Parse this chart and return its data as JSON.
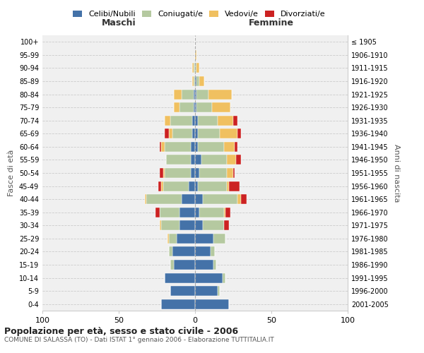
{
  "age_groups": [
    "0-4",
    "5-9",
    "10-14",
    "15-19",
    "20-24",
    "25-29",
    "30-34",
    "35-39",
    "40-44",
    "45-49",
    "50-54",
    "55-59",
    "60-64",
    "65-69",
    "70-74",
    "75-79",
    "80-84",
    "85-89",
    "90-94",
    "95-99",
    "100+"
  ],
  "birth_years": [
    "2001-2005",
    "1996-2000",
    "1991-1995",
    "1986-1990",
    "1981-1985",
    "1976-1980",
    "1971-1975",
    "1966-1970",
    "1961-1965",
    "1956-1960",
    "1951-1955",
    "1946-1950",
    "1941-1945",
    "1936-1940",
    "1931-1935",
    "1926-1930",
    "1921-1925",
    "1916-1920",
    "1911-1915",
    "1906-1910",
    "≤ 1905"
  ],
  "maschi": {
    "celibi": [
      22,
      16,
      20,
      14,
      15,
      12,
      10,
      10,
      9,
      4,
      3,
      3,
      3,
      2,
      2,
      1,
      1,
      0,
      0,
      0,
      0
    ],
    "coniugati": [
      0,
      0,
      0,
      2,
      2,
      5,
      12,
      13,
      23,
      17,
      17,
      16,
      17,
      13,
      14,
      9,
      8,
      1,
      1,
      0,
      0
    ],
    "vedovi": [
      0,
      0,
      0,
      0,
      0,
      1,
      1,
      0,
      1,
      1,
      1,
      0,
      2,
      2,
      4,
      4,
      5,
      1,
      1,
      0,
      0
    ],
    "divorziati": [
      0,
      0,
      0,
      0,
      0,
      0,
      0,
      3,
      0,
      2,
      2,
      0,
      1,
      3,
      0,
      0,
      0,
      0,
      0,
      0,
      0
    ]
  },
  "femmine": {
    "nubili": [
      22,
      15,
      18,
      12,
      10,
      12,
      5,
      3,
      5,
      2,
      3,
      4,
      2,
      2,
      2,
      1,
      1,
      1,
      0,
      0,
      0
    ],
    "coniugate": [
      0,
      1,
      2,
      2,
      3,
      8,
      14,
      16,
      23,
      19,
      18,
      17,
      17,
      14,
      13,
      10,
      8,
      2,
      1,
      0,
      0
    ],
    "vedove": [
      0,
      0,
      0,
      0,
      0,
      0,
      0,
      1,
      2,
      1,
      4,
      6,
      7,
      12,
      10,
      12,
      15,
      3,
      2,
      1,
      0
    ],
    "divorziate": [
      0,
      0,
      0,
      0,
      0,
      0,
      3,
      3,
      4,
      7,
      1,
      3,
      2,
      2,
      3,
      0,
      0,
      0,
      0,
      0,
      0
    ]
  },
  "colors": {
    "celibi_nubili": "#4472a8",
    "coniugati": "#b5c9a0",
    "vedovi": "#f0c060",
    "divorziati": "#cc2222"
  },
  "xlim": 100,
  "title": "Popolazione per età, sesso e stato civile - 2006",
  "subtitle": "COMUNE DI SALASSA (TO) - Dati ISTAT 1° gennaio 2006 - Elaborazione TUTTITALIA.IT",
  "ylabel_left": "Fasce di età",
  "ylabel_right": "Anni di nascita",
  "xlabel_left": "Maschi",
  "xlabel_right": "Femmine",
  "legend_labels": [
    "Celibi/Nubili",
    "Coniugati/e",
    "Vedovi/e",
    "Divorziati/e"
  ],
  "background_color": "#f0f0f0"
}
